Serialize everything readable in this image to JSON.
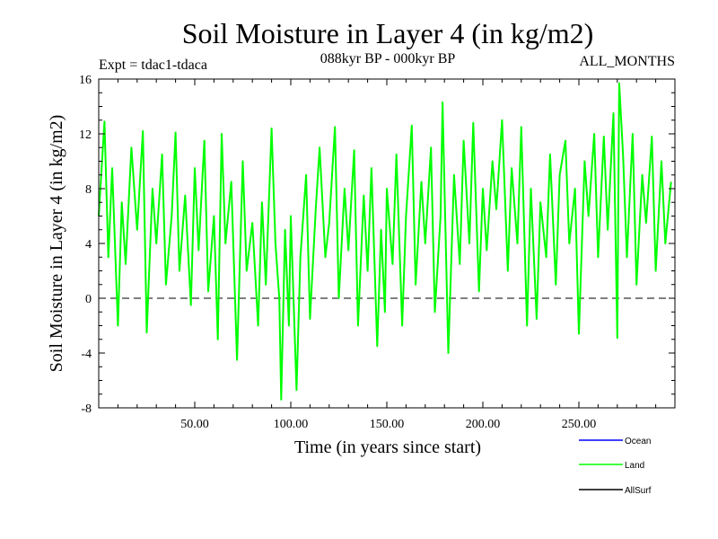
{
  "chart_data": {
    "type": "line",
    "title": "Soil Moisture in Layer 4 (in kg/m2)",
    "subtitle": "088kyr BP - 000kyr BP",
    "left_note": "Expt = tdac1-tdaca",
    "right_note": "ALL_MONTHS",
    "xlabel": "Time (in years since start)",
    "ylabel": "Soil Moisture in Layer 4 (in kg/m2)",
    "xlim": [
      0,
      300
    ],
    "ylim": [
      -8,
      16
    ],
    "x_ticks": [
      50,
      100,
      150,
      200,
      250
    ],
    "x_tick_labels": [
      "50.00",
      "100.00",
      "150.00",
      "200.00",
      "250.00"
    ],
    "y_ticks": [
      -8,
      -4,
      0,
      4,
      8,
      12,
      16
    ],
    "y_tick_labels": [
      "-8",
      "-4",
      "0",
      "4",
      "8",
      "12",
      "16"
    ],
    "zero_line": 0,
    "legend_position": "bottom-right",
    "series": [
      {
        "name": "Land",
        "color": "#00ff00",
        "x": [
          0,
          3,
          5,
          7,
          10,
          12,
          14,
          17,
          20,
          23,
          25,
          28,
          30,
          33,
          35,
          38,
          40,
          42,
          45,
          48,
          50,
          52,
          55,
          57,
          60,
          62,
          64,
          66,
          69,
          72,
          75,
          77,
          80,
          83,
          85,
          87,
          90,
          92,
          94,
          95,
          97,
          99,
          100,
          103,
          105,
          108,
          110,
          113,
          115,
          118,
          120,
          123,
          125,
          128,
          130,
          133,
          135,
          138,
          140,
          142,
          145,
          147,
          149,
          150,
          153,
          155,
          158,
          160,
          163,
          165,
          168,
          170,
          173,
          175,
          178,
          179,
          182,
          185,
          188,
          190,
          193,
          195,
          198,
          200,
          202,
          205,
          207,
          210,
          213,
          215,
          218,
          220,
          223,
          225,
          228,
          230,
          233,
          235,
          238,
          240,
          243,
          245,
          248,
          250,
          253,
          255,
          258,
          260,
          263,
          265,
          268,
          270,
          271,
          273,
          275,
          278,
          280,
          283,
          285,
          288,
          290,
          293,
          295,
          298
        ],
        "values": [
          6,
          12.9,
          3,
          9.5,
          -2,
          7,
          2.5,
          11,
          5,
          12.2,
          -2.5,
          8,
          4,
          10.5,
          1,
          6,
          12.1,
          2,
          7.5,
          -0.5,
          9.5,
          3.5,
          11.5,
          0.5,
          6,
          -3,
          12,
          4,
          8.5,
          -4.5,
          10,
          2,
          5.5,
          -2,
          7,
          1,
          12.4,
          4,
          0,
          -7.4,
          5,
          -2,
          6,
          -6.7,
          3,
          9,
          -1.5,
          6.5,
          11,
          3,
          5.5,
          12.5,
          0,
          8,
          3.5,
          10.8,
          -2,
          7.5,
          2,
          9.5,
          -3.5,
          5,
          -1,
          8,
          2.5,
          10.5,
          -2,
          6,
          12.6,
          1,
          8.5,
          4,
          11,
          -1,
          6,
          14.3,
          -4,
          9,
          2.5,
          11.5,
          4,
          12.8,
          0.5,
          8,
          3.5,
          10,
          6.5,
          13,
          2,
          9.5,
          4,
          12.5,
          -2,
          8,
          -1.5,
          7,
          3,
          10.5,
          1,
          9,
          11.5,
          4,
          8,
          -2.6,
          10,
          6,
          12,
          3,
          11.8,
          5,
          13.5,
          -2.9,
          15.7,
          10.5,
          3,
          12,
          1,
          9,
          5.5,
          11.8,
          2,
          10,
          4,
          8.5
        ]
      }
    ],
    "legend": [
      {
        "label": "Ocean",
        "color": "#0000ff"
      },
      {
        "label": "Land",
        "color": "#00ff00"
      },
      {
        "label": "AllSurf",
        "color": "#000000"
      }
    ]
  }
}
